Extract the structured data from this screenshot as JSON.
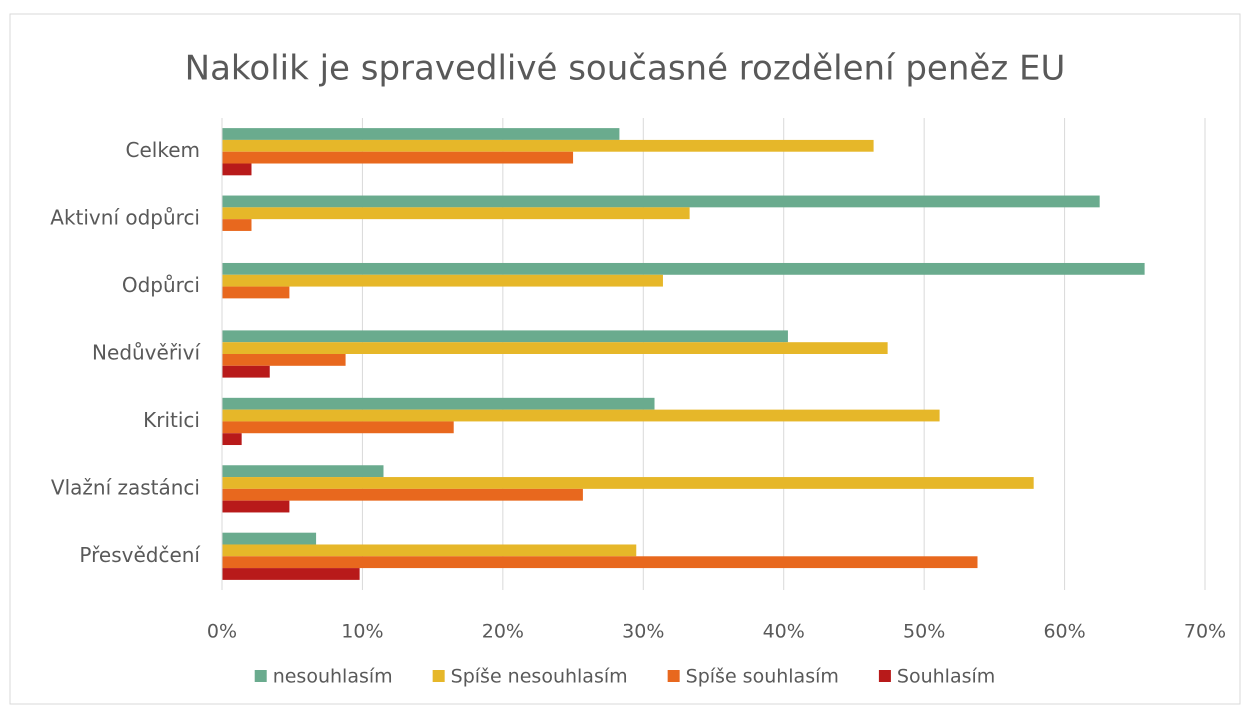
{
  "chart_data": {
    "type": "bar",
    "orientation": "horizontal",
    "title": "Nakolik je spravedlivé současné rozdělení peněz EU",
    "categories": [
      "Celkem",
      "Aktivní odpůrci",
      "Odpůrci",
      "Nedůvěřiví",
      "Kritici",
      "Vlažní zastánci",
      "Přesvědčení"
    ],
    "series": [
      {
        "name": "nesouhlasím",
        "color": "#6aab8e",
        "values": [
          28.3,
          62.5,
          65.7,
          40.3,
          30.8,
          11.5,
          6.7
        ]
      },
      {
        "name": "Spíše nesouhlasím",
        "color": "#e6b729",
        "values": [
          46.4,
          33.3,
          31.4,
          47.4,
          51.1,
          57.8,
          29.5
        ]
      },
      {
        "name": "Spíše souhlasím",
        "color": "#e8681e",
        "values": [
          25.0,
          2.1,
          4.8,
          8.8,
          16.5,
          25.7,
          53.8
        ]
      },
      {
        "name": "Souhlasím",
        "color": "#b81a1a",
        "values": [
          2.1,
          0,
          0,
          3.4,
          1.4,
          4.8,
          9.8
        ]
      }
    ],
    "xlim": [
      0,
      70
    ],
    "xticks": [
      {
        "value": 0,
        "label": "0%"
      },
      {
        "value": 10,
        "label": "10%"
      },
      {
        "value": 20,
        "label": "20%"
      },
      {
        "value": 30,
        "label": "30%"
      },
      {
        "value": 40,
        "label": "40%"
      },
      {
        "value": 50,
        "label": "50%"
      },
      {
        "value": 60,
        "label": "60%"
      },
      {
        "value": 70,
        "label": "70%"
      }
    ],
    "grid": true,
    "legend": "bottom"
  }
}
